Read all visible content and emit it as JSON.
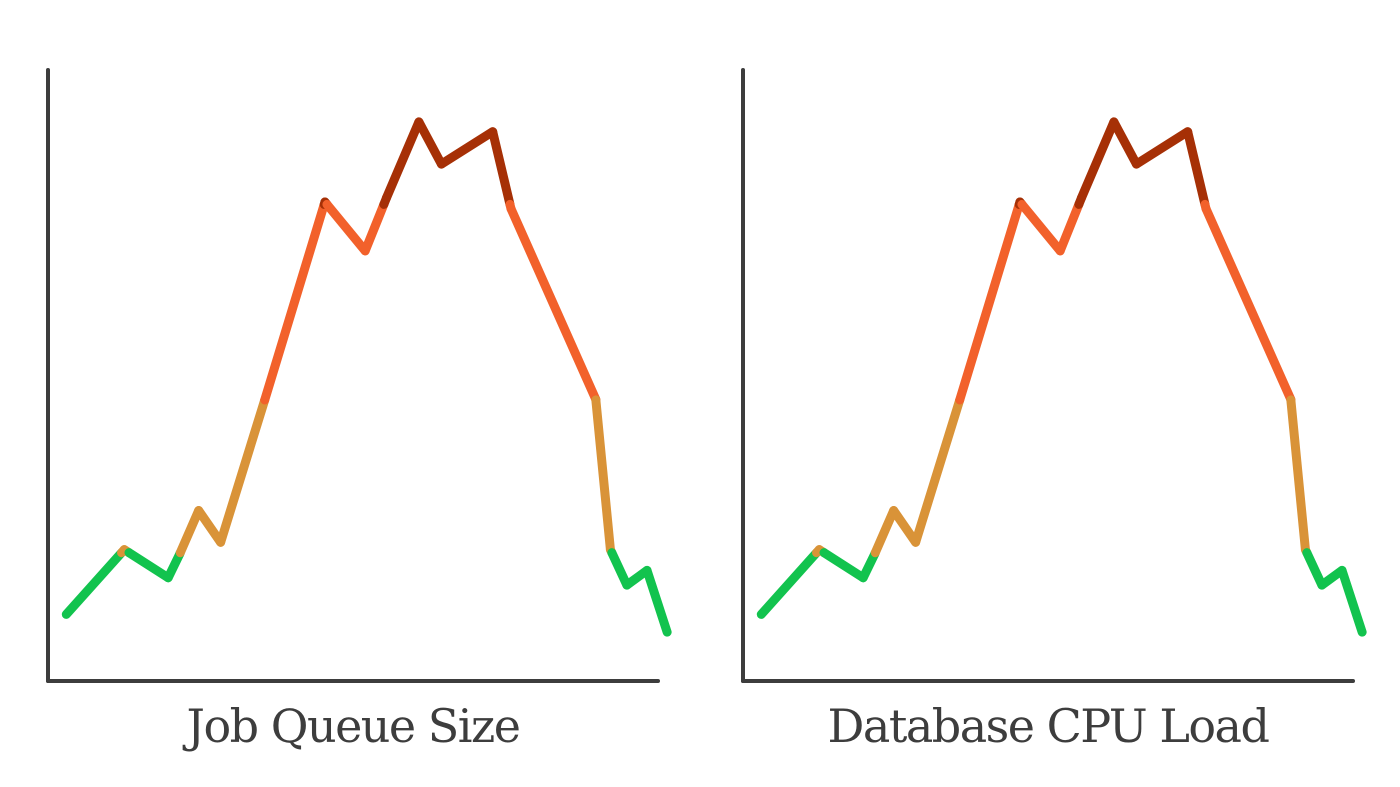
{
  "chart_data": [
    {
      "type": "line",
      "xlabel": "Job Queue Size",
      "ylabel": "",
      "xlim": [
        0,
        100
      ],
      "ylim": [
        0,
        100
      ],
      "grid": false,
      "x": [
        3,
        12.5,
        19.7,
        21.6,
        24.7,
        28.3,
        35.5,
        45.4,
        52.0,
        55.5,
        60.8,
        64.5,
        72.9,
        75.9,
        89.8,
        92.2,
        94.9,
        98.2
      ],
      "y": [
        10.9,
        21.5,
        16.9,
        20.8,
        27.9,
        22.7,
        45.9,
        78.4,
        70.4,
        79.1,
        91.5,
        84.6,
        89.9,
        77.3,
        46.1,
        21.5,
        15.7,
        18.1
      ],
      "extra_points": [
        {
          "x": 101.5,
          "y": 8.0
        }
      ],
      "thresholds": [
        21,
        46,
        78
      ],
      "colors": {
        "low": "#12c34e",
        "medium": "#d99338",
        "high": "#f2612b",
        "critical": "#a63006",
        "axis": "#3d3d3d",
        "label": "#3d3d3d"
      }
    },
    {
      "type": "line",
      "xlabel": "Database CPU Load",
      "ylabel": "",
      "xlim": [
        0,
        100
      ],
      "ylim": [
        0,
        100
      ],
      "grid": false,
      "x": [
        3,
        12.5,
        19.7,
        21.6,
        24.7,
        28.3,
        35.5,
        45.4,
        52.0,
        55.5,
        60.8,
        64.5,
        72.9,
        75.9,
        89.8,
        92.2,
        94.9,
        98.2
      ],
      "y": [
        10.9,
        21.5,
        16.9,
        20.8,
        27.9,
        22.7,
        45.9,
        78.4,
        70.4,
        79.1,
        91.5,
        84.6,
        89.9,
        77.3,
        46.1,
        21.5,
        15.7,
        18.1
      ],
      "extra_points": [
        {
          "x": 101.5,
          "y": 8.0
        }
      ],
      "thresholds": [
        21,
        46,
        78
      ],
      "colors": {
        "low": "#12c34e",
        "medium": "#d99338",
        "high": "#f2612b",
        "critical": "#a63006",
        "axis": "#3d3d3d",
        "label": "#3d3d3d"
      }
    }
  ]
}
